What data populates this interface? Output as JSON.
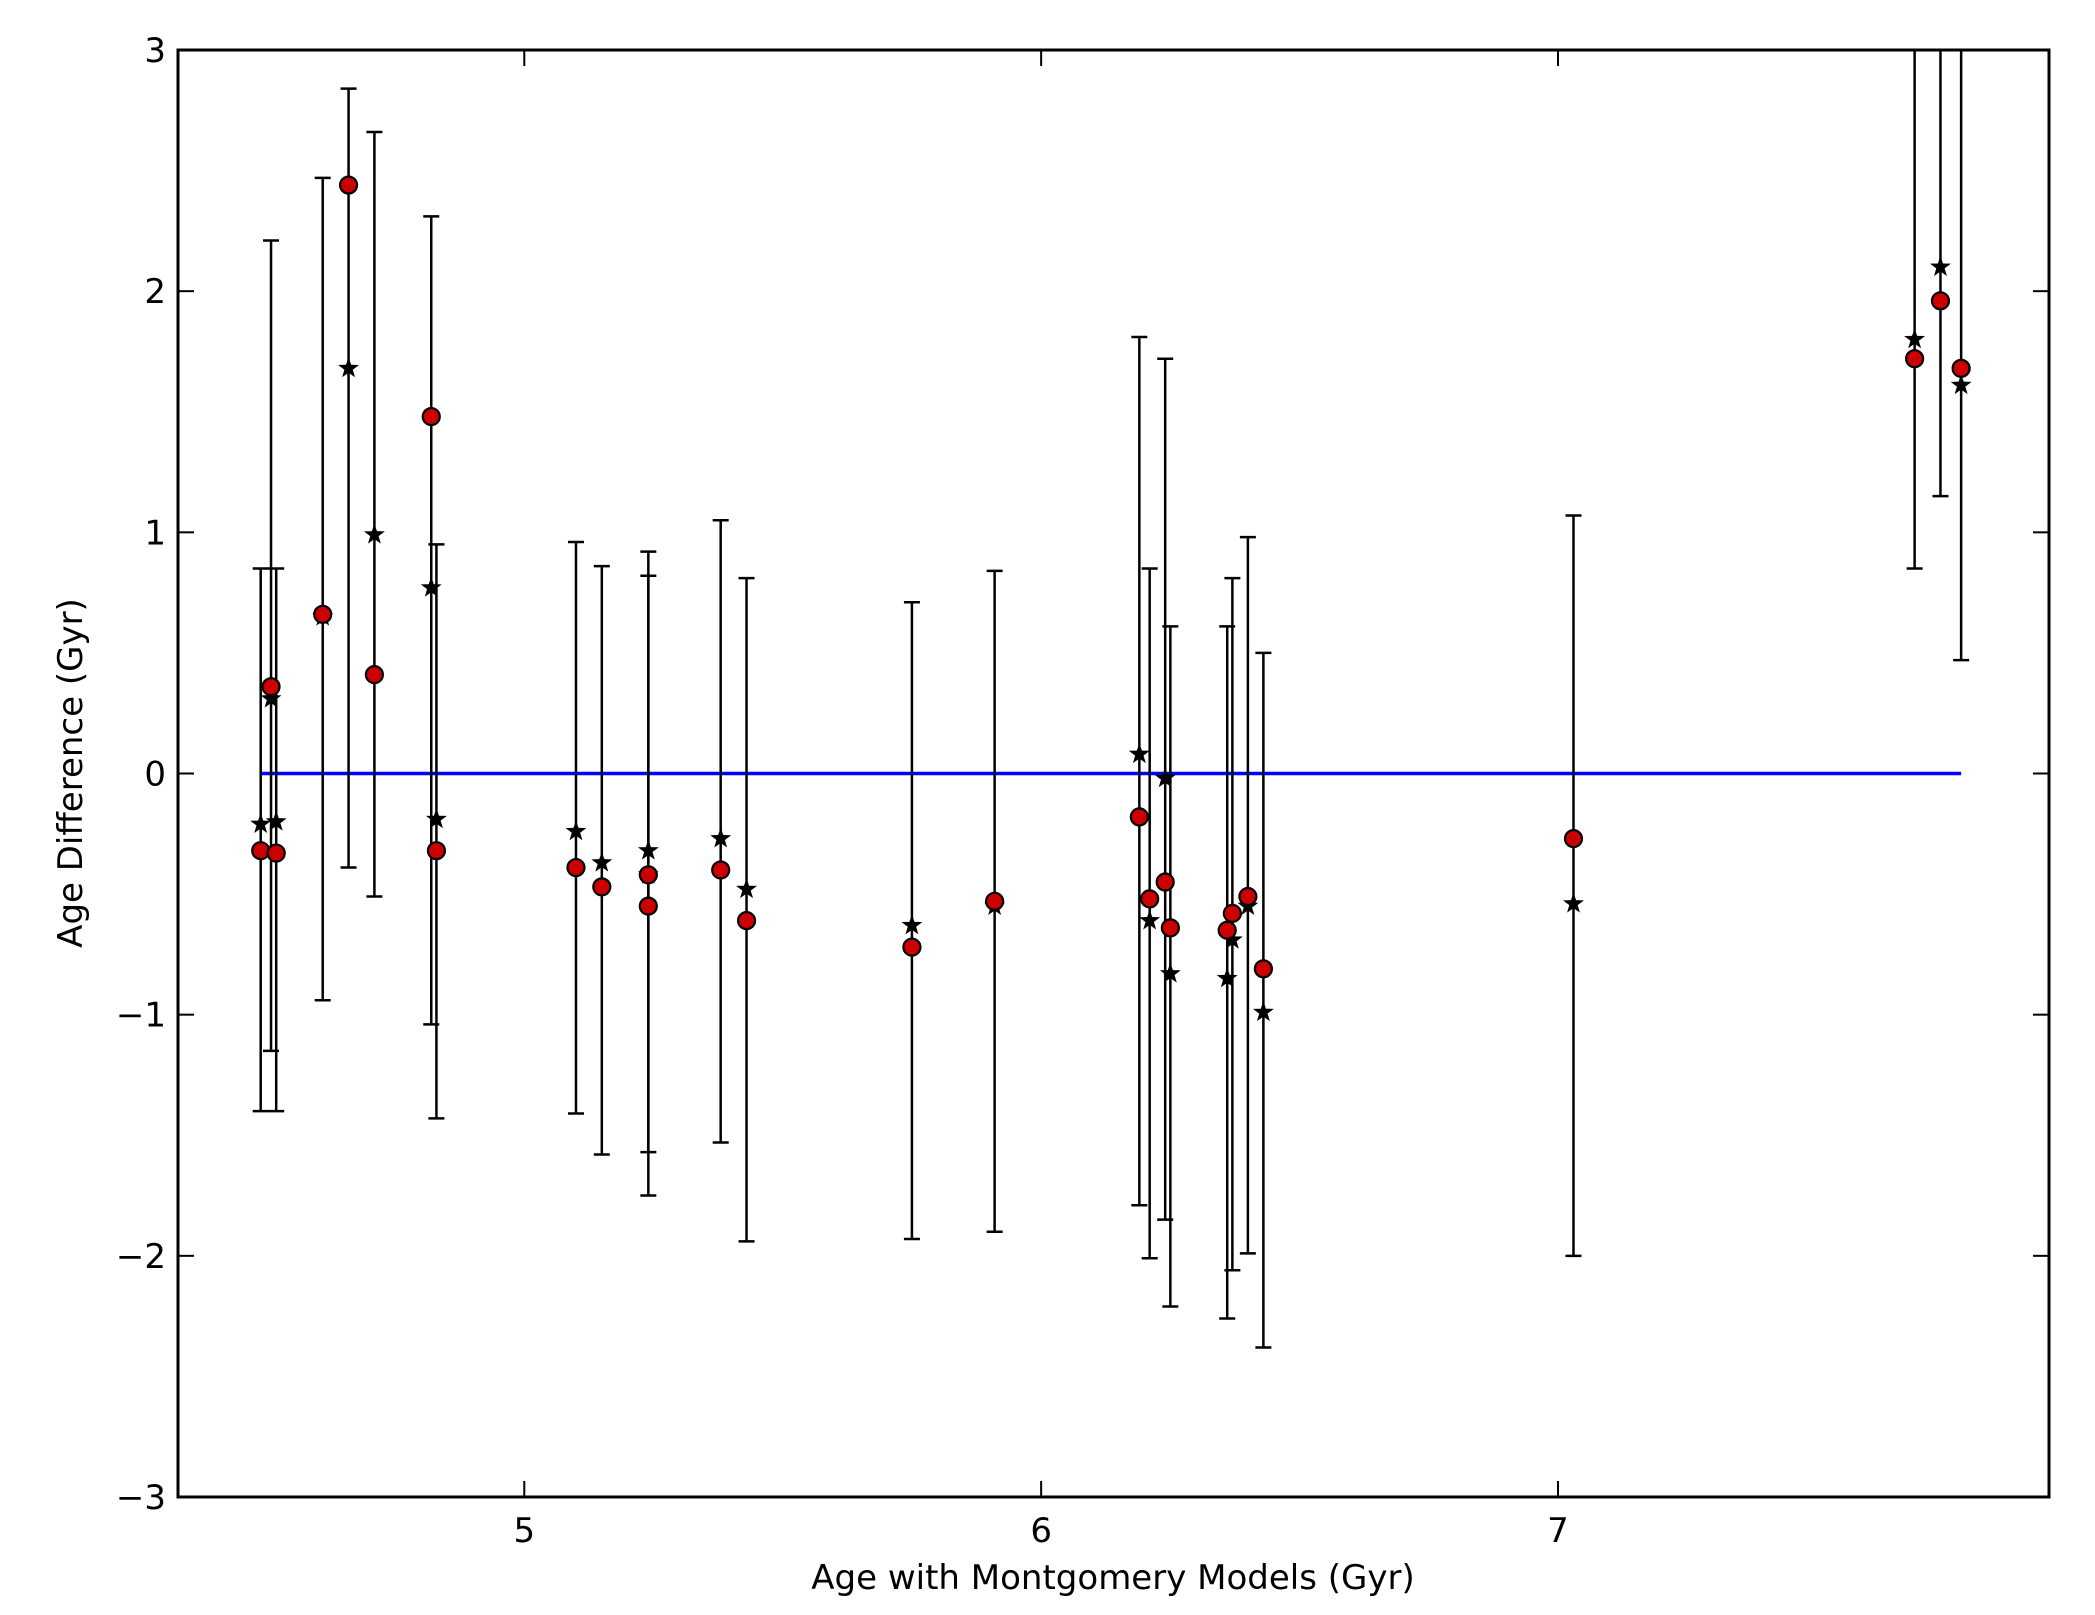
{
  "chart_data": {
    "type": "scatter",
    "xlabel": "Age with Montgomery Models (Gyr)",
    "ylabel": "Age Difference (Gyr)",
    "xlim": [
      4.33,
      7.95
    ],
    "ylim": [
      -3,
      3
    ],
    "xticks": [
      5,
      6,
      7
    ],
    "yticks": [
      -3,
      -2,
      -1,
      0,
      1,
      2,
      3
    ],
    "grid": false,
    "legend": "none",
    "colors": {
      "circle_fill": "#cc0000",
      "circle_edge": "#000000",
      "star": "#000000",
      "errorbar": "#000000",
      "zero_line": "#0000ff"
    },
    "zero_line": {
      "x": [
        4.49,
        7.78
      ],
      "y": 0
    },
    "points": [
      {
        "x": 4.49,
        "circle": -0.32,
        "star": -0.21,
        "lo": -1.4,
        "hi": 0.85
      },
      {
        "x": 4.51,
        "circle": 0.36,
        "star": 0.31,
        "lo": -1.15,
        "hi": 2.21
      },
      {
        "x": 4.52,
        "circle": -0.33,
        "star": -0.2,
        "lo": -1.4,
        "hi": 0.85
      },
      {
        "x": 4.61,
        "circle": 0.66,
        "star": 0.65,
        "lo": -0.94,
        "hi": 2.47
      },
      {
        "x": 4.66,
        "circle": 2.44,
        "star": 1.68,
        "lo": -0.39,
        "hi": 2.84
      },
      {
        "x": 4.71,
        "circle": 0.41,
        "star": 0.99,
        "lo": -0.51,
        "hi": 2.66
      },
      {
        "x": 4.82,
        "circle": 1.48,
        "star": 0.77,
        "lo": -1.04,
        "hi": 2.31
      },
      {
        "x": 4.83,
        "circle": -0.32,
        "star": -0.19,
        "lo": -1.43,
        "hi": 0.95
      },
      {
        "x": 5.1,
        "circle": -0.39,
        "star": -0.24,
        "lo": -1.41,
        "hi": 0.96
      },
      {
        "x": 5.15,
        "circle": -0.47,
        "star": -0.37,
        "lo": -1.58,
        "hi": 0.86
      },
      {
        "x": 5.24,
        "circle": -0.42,
        "star": -0.32,
        "lo": -1.57,
        "hi": 0.92
      },
      {
        "x": 5.24,
        "circle": -0.55,
        "star": -0.42,
        "lo": -1.75,
        "hi": 0.82
      },
      {
        "x": 5.38,
        "circle": -0.4,
        "star": -0.27,
        "lo": -1.53,
        "hi": 1.05
      },
      {
        "x": 5.43,
        "circle": -0.61,
        "star": -0.48,
        "lo": -1.94,
        "hi": 0.81
      },
      {
        "x": 5.75,
        "circle": -0.72,
        "star": -0.63,
        "lo": -1.93,
        "hi": 0.71
      },
      {
        "x": 5.91,
        "circle": -0.53,
        "star": -0.55,
        "lo": -1.9,
        "hi": 0.84
      },
      {
        "x": 6.19,
        "circle": -0.18,
        "star": 0.08,
        "lo": -1.79,
        "hi": 1.81
      },
      {
        "x": 6.21,
        "circle": -0.52,
        "star": -0.61,
        "lo": -2.01,
        "hi": 0.85
      },
      {
        "x": 6.24,
        "circle": -0.45,
        "star": -0.02,
        "lo": -1.85,
        "hi": 1.72
      },
      {
        "x": 6.25,
        "circle": -0.64,
        "star": -0.83,
        "lo": -2.21,
        "hi": 0.61
      },
      {
        "x": 6.36,
        "circle": -0.65,
        "star": -0.85,
        "lo": -2.26,
        "hi": 0.61
      },
      {
        "x": 6.37,
        "circle": -0.58,
        "star": -0.69,
        "lo": -2.06,
        "hi": 0.81
      },
      {
        "x": 6.4,
        "circle": -0.51,
        "star": -0.55,
        "lo": -1.99,
        "hi": 0.98
      },
      {
        "x": 6.43,
        "circle": -0.81,
        "star": -0.99,
        "lo": -2.38,
        "hi": 0.5
      },
      {
        "x": 7.03,
        "circle": -0.27,
        "star": -0.54,
        "lo": -2.0,
        "hi": 1.07
      },
      {
        "x": 7.69,
        "circle": 1.72,
        "star": 1.8,
        "lo": 0.85,
        "hi": 3.0
      },
      {
        "x": 7.74,
        "circle": 1.96,
        "star": 2.1,
        "lo": 1.15,
        "hi": 3.0
      },
      {
        "x": 7.78,
        "circle": 1.68,
        "star": 1.61,
        "lo": 0.47,
        "hi": 3.0
      }
    ]
  }
}
